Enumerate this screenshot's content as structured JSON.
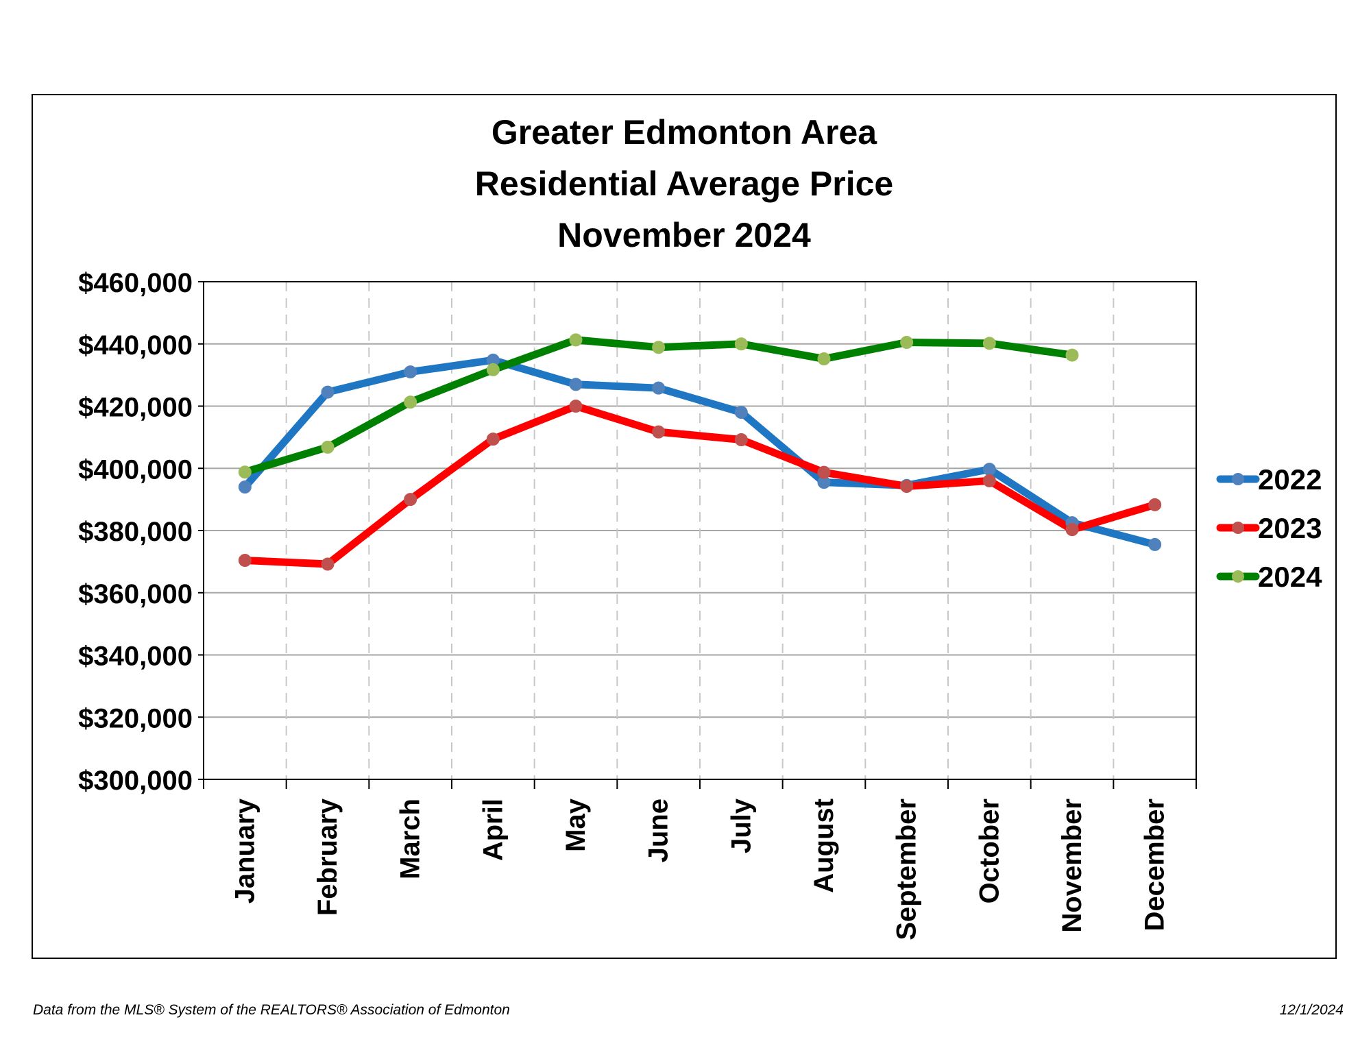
{
  "chart_data": {
    "type": "line",
    "title": [
      "Greater Edmonton Area",
      "Residential Average Price",
      "November 2024"
    ],
    "xlabel": "",
    "ylabel": "",
    "categories": [
      "January",
      "February",
      "March",
      "April",
      "May",
      "June",
      "July",
      "August",
      "September",
      "October",
      "November",
      "December"
    ],
    "ylim": [
      300000,
      460000
    ],
    "yticks": [
      300000,
      320000,
      340000,
      360000,
      380000,
      400000,
      420000,
      440000,
      460000
    ],
    "ytick_labels": [
      "$300,000",
      "$320,000",
      "$340,000",
      "$360,000",
      "$380,000",
      "$400,000",
      "$420,000",
      "$440,000",
      "$460,000"
    ],
    "grid": {
      "horizontal": true,
      "vertical_dashed": true
    },
    "legend_position": "right",
    "series": [
      {
        "name": "2022",
        "line_color": "#1f77c4",
        "marker_color": "#4f81bd",
        "values": [
          394000,
          424500,
          431000,
          434800,
          427000,
          425800,
          418000,
          395500,
          394500,
          399700,
          382500,
          375500
        ]
      },
      {
        "name": "2023",
        "line_color": "#ff0000",
        "marker_color": "#c0504d",
        "values": [
          370400,
          369200,
          390000,
          409400,
          420000,
          411700,
          409200,
          398700,
          394200,
          396000,
          380300,
          388300
        ]
      },
      {
        "name": "2024",
        "line_color": "#008000",
        "marker_color": "#9bbb59",
        "values": [
          398800,
          406800,
          421300,
          431700,
          441300,
          438900,
          440000,
          435200,
          440500,
          440200,
          436400,
          null
        ]
      }
    ]
  },
  "footer": {
    "source": "Data from the MLS® System of the REALTORS® Association of Edmonton",
    "date": "12/1/2024"
  }
}
